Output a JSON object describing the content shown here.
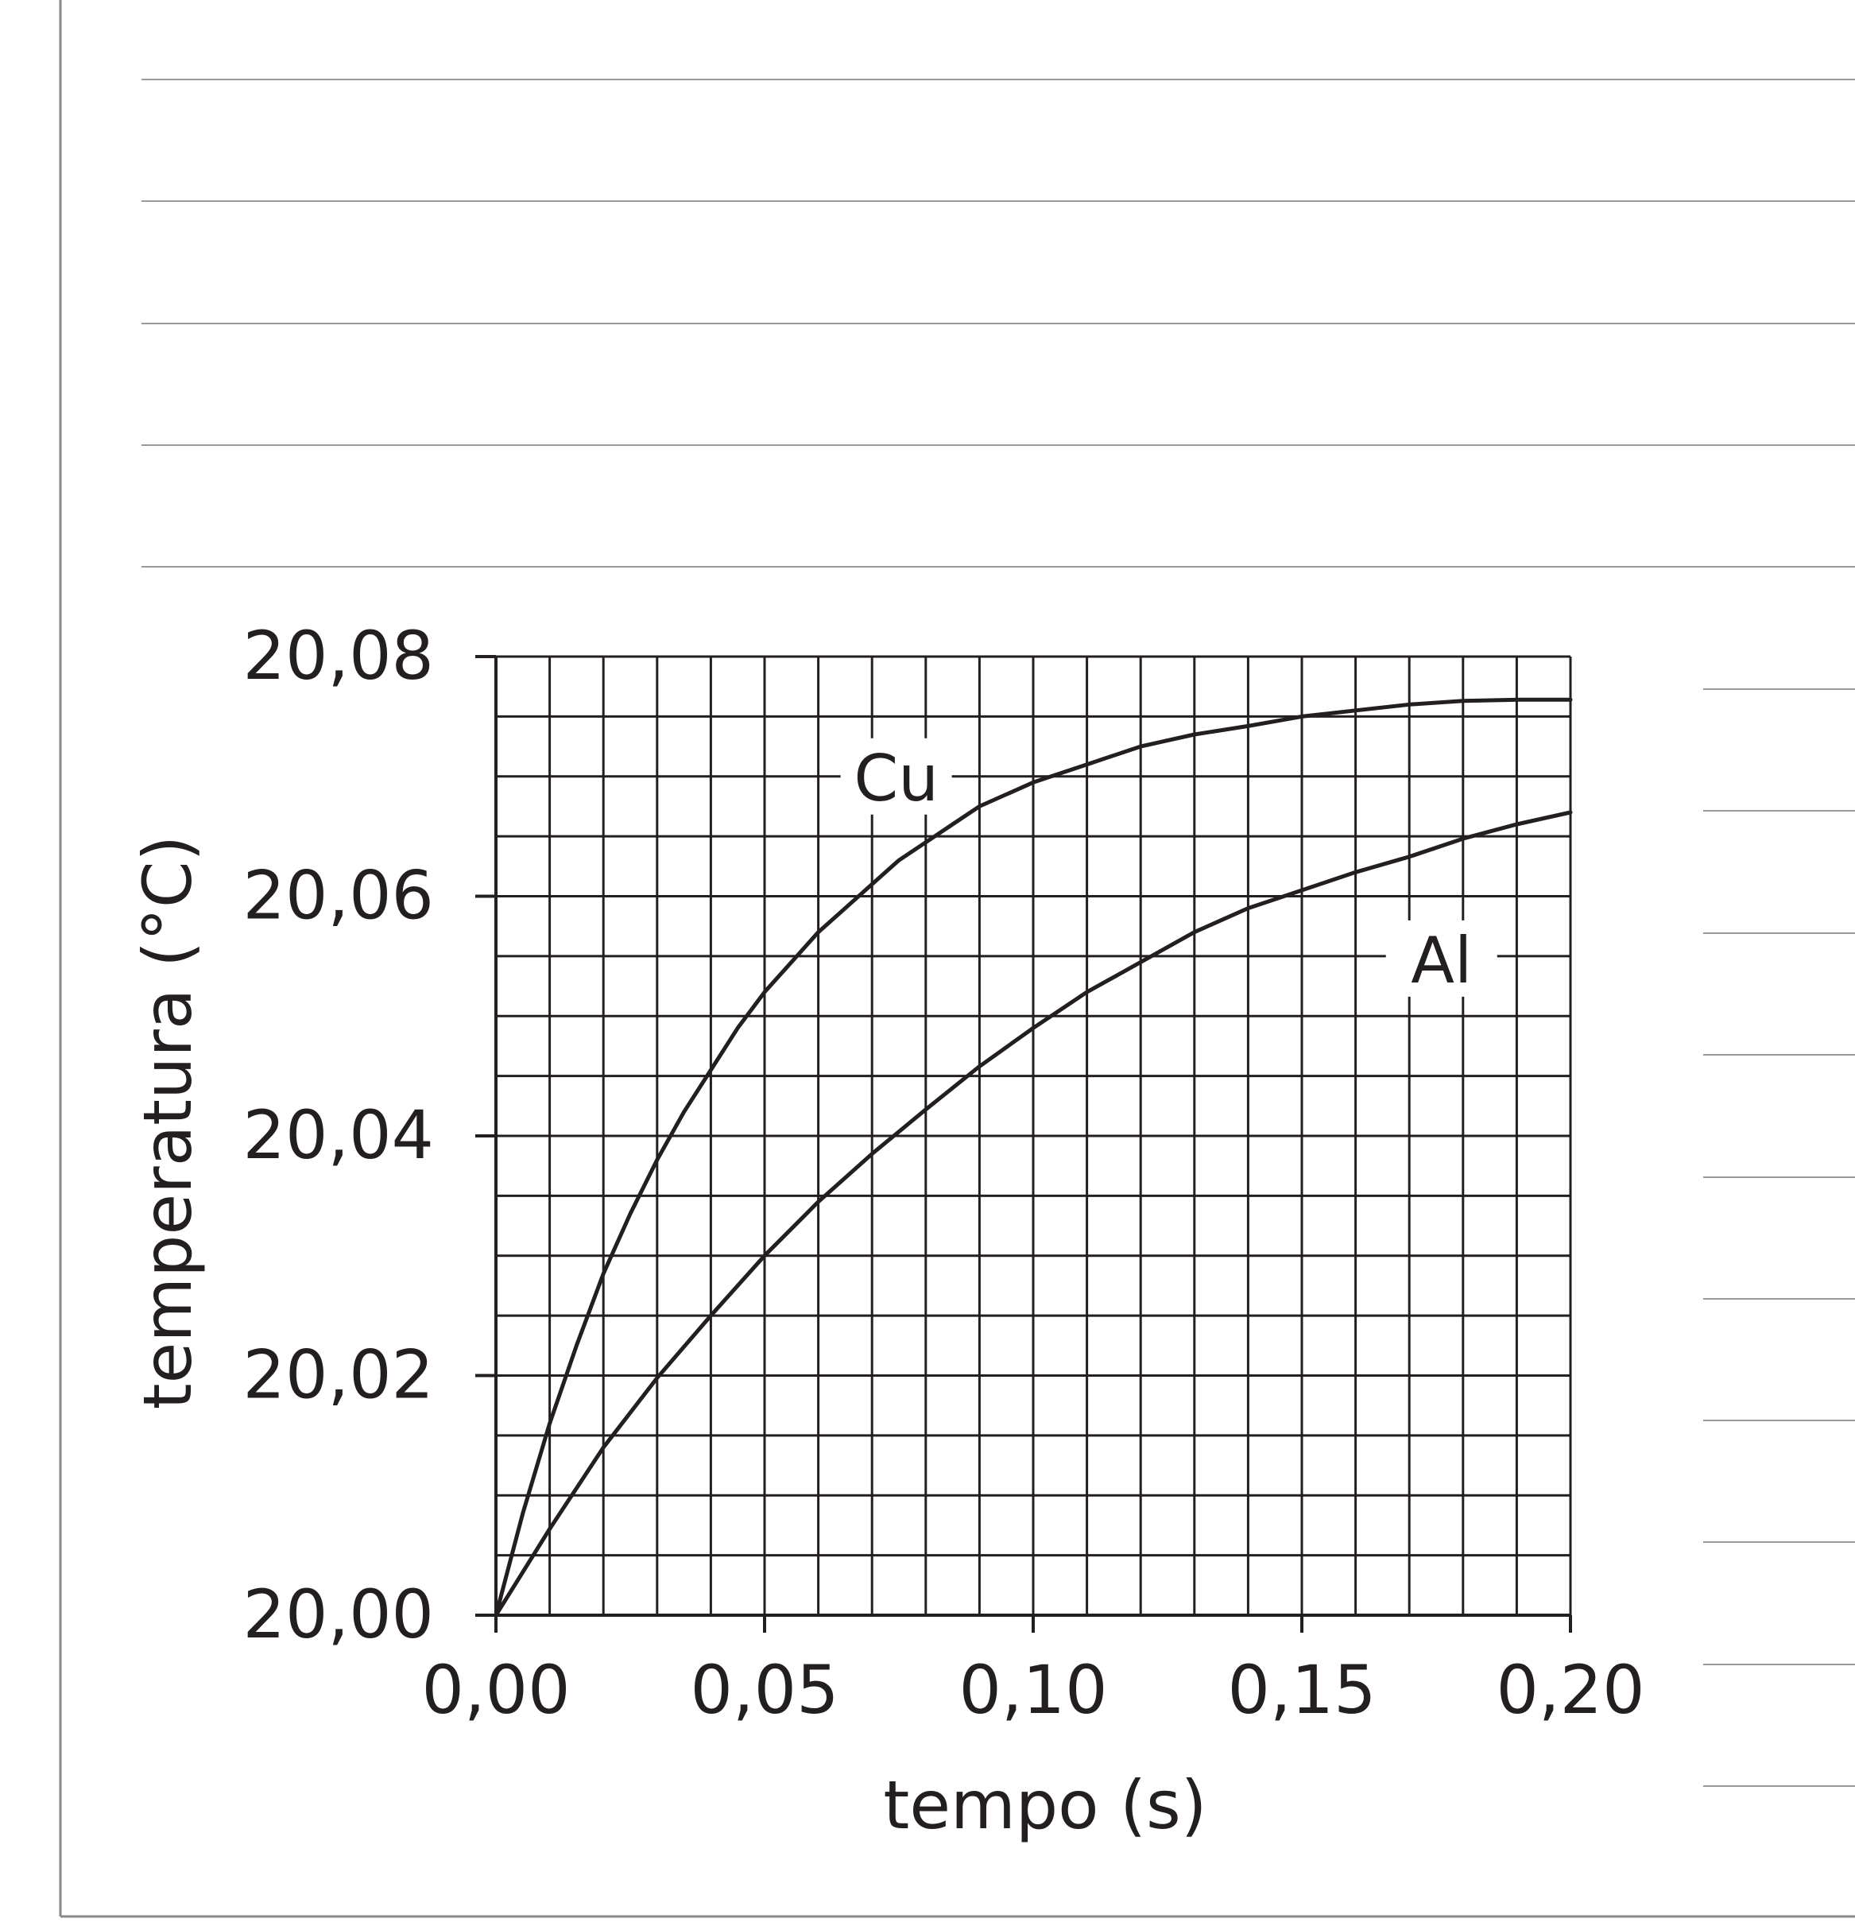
{
  "chart_data": {
    "type": "line",
    "xlabel": "tempo (s)",
    "ylabel": "temperatura (°C)",
    "xlim": [
      0,
      0.2
    ],
    "ylim": [
      20.0,
      20.08
    ],
    "x_minor_step": 0.01,
    "y_minor_step": 0.005,
    "grid": true,
    "x_ticks": [
      "0,00",
      "0,05",
      "0,10",
      "0,15",
      "0,20"
    ],
    "y_ticks": [
      "20,00",
      "20,02",
      "20,04",
      "20,06",
      "20,08"
    ],
    "x_tick_values": [
      0,
      0.05,
      0.1,
      0.15,
      0.2
    ],
    "y_tick_values": [
      20.0,
      20.02,
      20.04,
      20.06,
      20.08
    ],
    "series": [
      {
        "name": "Cu",
        "x": [
          0,
          0.005,
          0.01,
          0.015,
          0.02,
          0.025,
          0.03,
          0.035,
          0.04,
          0.045,
          0.05,
          0.055,
          0.06,
          0.065,
          0.07,
          0.075,
          0.08,
          0.085,
          0.09,
          0.095,
          0.1,
          0.11,
          0.12,
          0.13,
          0.14,
          0.15,
          0.16,
          0.17,
          0.18,
          0.19,
          0.2
        ],
        "y": [
          20.0,
          20.0085,
          20.016,
          20.0225,
          20.0285,
          20.0335,
          20.038,
          20.042,
          20.0455,
          20.049,
          20.052,
          20.0545,
          20.057,
          20.059,
          20.061,
          20.063,
          20.0645,
          20.066,
          20.0675,
          20.0685,
          20.0695,
          20.071,
          20.0725,
          20.0735,
          20.0742,
          20.075,
          20.0755,
          20.076,
          20.0763,
          20.0764,
          20.0764
        ]
      },
      {
        "name": "Al",
        "x": [
          0,
          0.01,
          0.02,
          0.03,
          0.04,
          0.05,
          0.06,
          0.07,
          0.08,
          0.09,
          0.1,
          0.11,
          0.12,
          0.13,
          0.14,
          0.15,
          0.16,
          0.17,
          0.18,
          0.19,
          0.2
        ],
        "y": [
          20.0,
          20.0072,
          20.014,
          20.0198,
          20.025,
          20.03,
          20.0345,
          20.0385,
          20.0422,
          20.0458,
          20.049,
          20.052,
          20.0545,
          20.057,
          20.059,
          20.0605,
          20.062,
          20.0633,
          20.0648,
          20.066,
          20.067
        ]
      }
    ]
  }
}
